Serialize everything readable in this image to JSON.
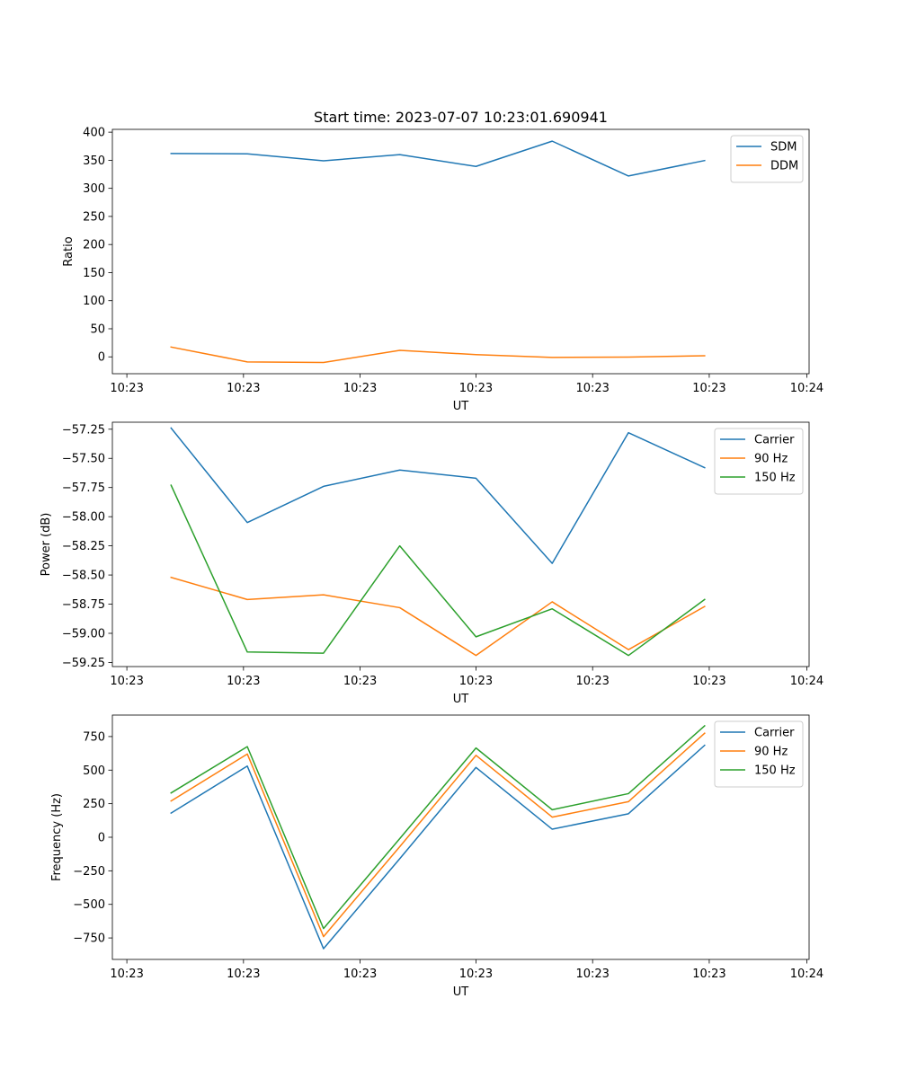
{
  "figure_title": "Start time: 2023-07-07 10:23:01.690941",
  "colors": {
    "blue": "#1f77b4",
    "orange": "#ff7f0e",
    "green": "#2ca02c"
  },
  "chart_data": [
    {
      "type": "line",
      "title": "Start time: 2023-07-07 10:23:01.690941",
      "xlabel": "UT",
      "ylabel": "Ratio",
      "x": [
        1,
        2,
        3,
        4,
        5,
        6,
        7,
        8
      ],
      "xlim": [
        0.23,
        9.37
      ],
      "xticks": [
        0.42,
        1.95,
        3.48,
        5.0,
        6.53,
        8.06,
        9.34
      ],
      "xtick_labels": [
        "10:23",
        "10:23",
        "10:23",
        "10:23",
        "10:23",
        "10:23",
        "10:24"
      ],
      "ylim": [
        -30,
        405
      ],
      "yticks": [
        0,
        50,
        100,
        150,
        200,
        250,
        300,
        350,
        400
      ],
      "ytick_labels": [
        "0",
        "50",
        "100",
        "150",
        "200",
        "250",
        "300",
        "350",
        "400"
      ],
      "legend_position": "top-right",
      "series": [
        {
          "name": "SDM",
          "color": "#1f77b4",
          "values": [
            362,
            361.5,
            349,
            360,
            339,
            384,
            322,
            349.5
          ]
        },
        {
          "name": "DDM",
          "color": "#ff7f0e",
          "values": [
            17.5,
            -9,
            -10,
            11.5,
            4,
            -1,
            -0.5,
            2
          ]
        }
      ]
    },
    {
      "type": "line",
      "title": "",
      "xlabel": "UT",
      "ylabel": "Power (dB)",
      "x": [
        1,
        2,
        3,
        4,
        5,
        6,
        7,
        8
      ],
      "xlim": [
        0.23,
        9.37
      ],
      "xticks": [
        0.42,
        1.95,
        3.48,
        5.0,
        6.53,
        8.06,
        9.34
      ],
      "xtick_labels": [
        "10:23",
        "10:23",
        "10:23",
        "10:23",
        "10:23",
        "10:23",
        "10:24"
      ],
      "ylim": [
        -59.285,
        -57.19
      ],
      "yticks": [
        -59.25,
        -59.0,
        -58.75,
        -58.5,
        -58.25,
        -58.0,
        -57.75,
        -57.5,
        -57.25
      ],
      "ytick_labels": [
        "−59.25",
        "−59.00",
        "−58.75",
        "−58.50",
        "−58.25",
        "−58.00",
        "−57.75",
        "−57.50",
        "−57.25"
      ],
      "legend_position": "top-right",
      "series": [
        {
          "name": "Carrier",
          "color": "#1f77b4",
          "values": [
            -57.24,
            -58.05,
            -57.74,
            -57.6,
            -57.67,
            -58.4,
            -57.28,
            -57.58
          ]
        },
        {
          "name": "90 Hz",
          "color": "#ff7f0e",
          "values": [
            -58.52,
            -58.71,
            -58.67,
            -58.78,
            -59.19,
            -58.73,
            -59.14,
            -58.77
          ]
        },
        {
          "name": "150 Hz",
          "color": "#2ca02c",
          "values": [
            -57.73,
            -59.16,
            -59.17,
            -58.25,
            -59.03,
            -58.79,
            -59.19,
            -58.71
          ]
        }
      ]
    },
    {
      "type": "line",
      "title": "",
      "xlabel": "UT",
      "ylabel": "Frequency (Hz)",
      "x": [
        1,
        2,
        3,
        4,
        5,
        6,
        7,
        8
      ],
      "xlim": [
        0.23,
        9.37
      ],
      "xticks": [
        0.42,
        1.95,
        3.48,
        5.0,
        6.53,
        8.06,
        9.34
      ],
      "xtick_labels": [
        "10:23",
        "10:23",
        "10:23",
        "10:23",
        "10:23",
        "10:23",
        "10:24"
      ],
      "ylim": [
        -910,
        910
      ],
      "yticks": [
        -750,
        -500,
        -250,
        0,
        250,
        500,
        750
      ],
      "ytick_labels": [
        "−750",
        "−500",
        "−250",
        "0",
        "250",
        "500",
        "750"
      ],
      "legend_position": "top-right",
      "series": [
        {
          "name": "Carrier",
          "color": "#1f77b4",
          "values": [
            180,
            530,
            -830,
            -160,
            520,
            60,
            175,
            685
          ]
        },
        {
          "name": "90 Hz",
          "color": "#ff7f0e",
          "values": [
            270,
            620,
            -740,
            -70,
            610,
            150,
            265,
            775
          ]
        },
        {
          "name": "150 Hz",
          "color": "#2ca02c",
          "values": [
            330,
            675,
            -680,
            -10,
            665,
            205,
            325,
            830
          ]
        }
      ]
    }
  ]
}
